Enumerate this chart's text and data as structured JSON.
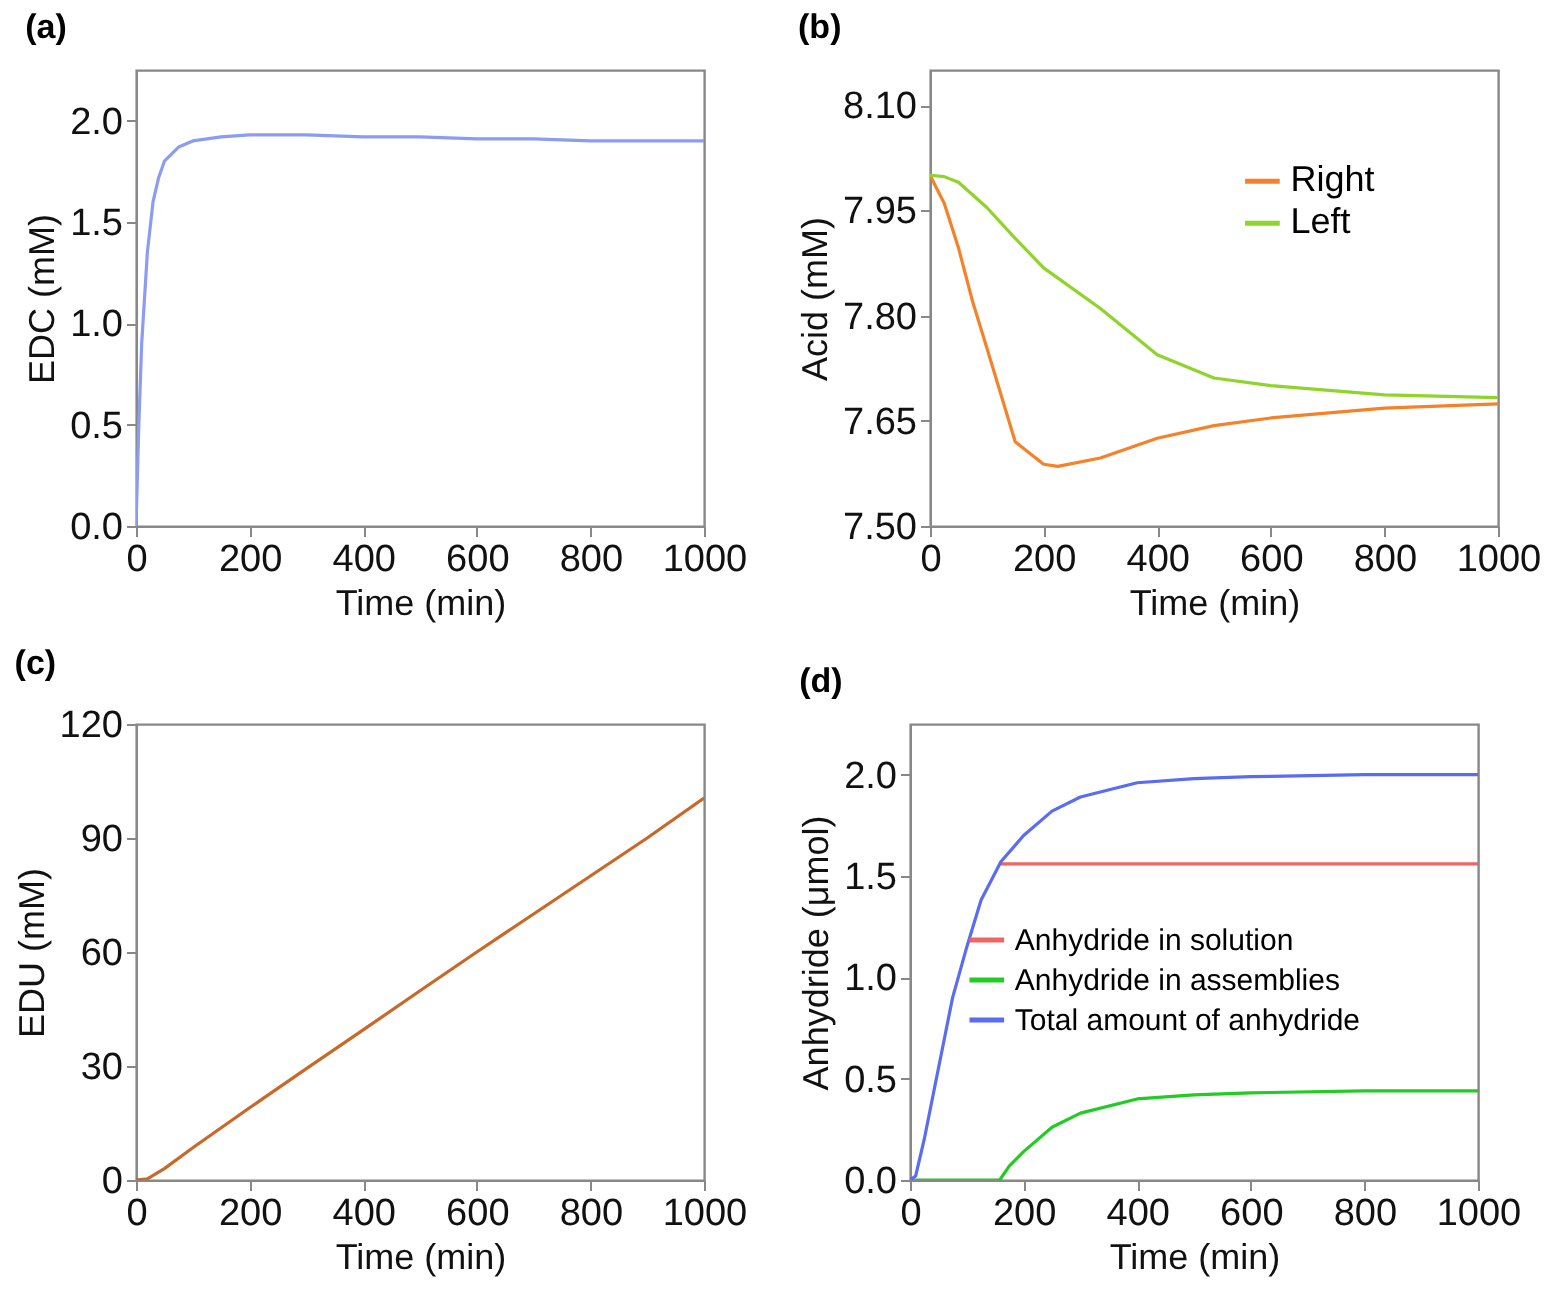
{
  "chart_data": [
    {
      "type": "line",
      "title": "(a)",
      "xlabel": "Time (min)",
      "ylabel": "EDC (mM)",
      "xlim": [
        0,
        1000
      ],
      "xticks": [
        0,
        200,
        400,
        600,
        800,
        1000
      ],
      "ylim": [
        0,
        2.25
      ],
      "yticks": [
        {
          "value": 0,
          "label": "0.0"
        },
        {
          "value": 0.5,
          "label": "0.5"
        },
        {
          "value": 1,
          "label": "1.0"
        },
        {
          "value": 1.5,
          "label": "1.5"
        },
        {
          "value": 2,
          "label": "2.0"
        }
      ],
      "series": [
        {
          "color": "#8c9cf2",
          "x": [
            0,
            5,
            10,
            20,
            30,
            40,
            50,
            75,
            100,
            150,
            200,
            300,
            400,
            500,
            600,
            700,
            800,
            900,
            1000
          ],
          "values": [
            0,
            0.5,
            0.9,
            1.35,
            1.6,
            1.72,
            1.8,
            1.87,
            1.9,
            1.92,
            1.93,
            1.93,
            1.92,
            1.92,
            1.91,
            1.91,
            1.9,
            1.9,
            1.9
          ]
        }
      ]
    },
    {
      "type": "line",
      "title": "(b)",
      "xlabel": "Time (min)",
      "ylabel": "Acid (mM)",
      "xlim": [
        0,
        1000
      ],
      "xticks": [
        0,
        200,
        400,
        600,
        800,
        1000
      ],
      "ylim": [
        7.5,
        8.15
      ],
      "yticks": [
        {
          "value": 7.5,
          "label": "7.50"
        },
        {
          "value": 7.65,
          "label": "7.65"
        },
        {
          "value": 7.8,
          "label": "7.80"
        },
        {
          "value": 7.95,
          "label": "7.95"
        },
        {
          "value": 8.1,
          "label": "8.10"
        }
      ],
      "legend": "top right",
      "series": [
        {
          "name": "Right",
          "color": "#f5822a",
          "x": [
            0,
            25,
            50,
            75,
            100,
            150,
            200,
            225,
            300,
            400,
            500,
            600,
            800,
            1000
          ],
          "values": [
            8.0,
            7.96,
            7.897,
            7.82,
            7.754,
            7.62,
            7.588,
            7.585,
            7.597,
            7.625,
            7.643,
            7.654,
            7.668,
            7.674
          ]
        },
        {
          "name": "Left",
          "color": "#8fd42a",
          "x": [
            0,
            25,
            50,
            100,
            150,
            200,
            300,
            400,
            500,
            600,
            800,
            1000
          ],
          "values": [
            8.0,
            7.998,
            7.99,
            7.954,
            7.91,
            7.868,
            7.81,
            7.744,
            7.711,
            7.7,
            7.687,
            7.683
          ]
        }
      ]
    },
    {
      "type": "line",
      "title": "(c)",
      "xlabel": "Time (min)",
      "ylabel": "EDU (mM)",
      "xlim": [
        0,
        1000
      ],
      "xticks": [
        0,
        200,
        400,
        600,
        800,
        1000
      ],
      "ylim": [
        0,
        120
      ],
      "yticks": [
        0,
        30,
        60,
        90,
        120
      ],
      "series": [
        {
          "color": "#c8692a",
          "x": [
            0,
            20,
            50,
            100,
            200,
            300,
            400,
            500,
            600,
            700,
            800,
            900,
            1000
          ],
          "values": [
            0,
            0.3,
            3,
            8.5,
            19,
            29.3,
            39.5,
            49.8,
            60,
            70,
            80,
            90,
            100.5
          ]
        }
      ]
    },
    {
      "type": "line",
      "title": "(d)",
      "xlabel": "Time (min)",
      "ylabel": "Anhydride (μmol)",
      "xlim": [
        0,
        1000
      ],
      "xticks": [
        0,
        200,
        400,
        600,
        800,
        1000
      ],
      "ylim": [
        0,
        2.25
      ],
      "yticks": [
        {
          "value": 0,
          "label": "0.0"
        },
        {
          "value": 0.5,
          "label": "0.5"
        },
        {
          "value": 1,
          "label": "1.0"
        },
        {
          "value": 1.5,
          "label": "1.5"
        },
        {
          "value": 2,
          "label": "2.0"
        }
      ],
      "legend": "left",
      "series": [
        {
          "name": "Anhydride in solution",
          "color": "#f06464",
          "x": [
            160,
            1000
          ],
          "values": [
            1.56,
            1.56
          ]
        },
        {
          "name": "Anhydride in assemblies",
          "color": "#22cc22",
          "x": [
            0,
            158,
            175,
            200,
            250,
            300,
            400,
            500,
            600,
            800,
            1000
          ],
          "values": [
            0,
            0,
            0.07,
            0.14,
            0.26,
            0.33,
            0.4,
            0.42,
            0.43,
            0.44,
            0.44
          ]
        },
        {
          "name": "Total amount of anhydride",
          "color": "#5a6cf0",
          "x": [
            0,
            10,
            25,
            50,
            75,
            100,
            125,
            160,
            200,
            250,
            300,
            400,
            500,
            600,
            800,
            1000
          ],
          "values": [
            0,
            0.02,
            0.2,
            0.55,
            0.9,
            1.15,
            1.38,
            1.57,
            1.7,
            1.82,
            1.89,
            1.96,
            1.98,
            1.99,
            2.0,
            2.0
          ]
        }
      ]
    }
  ]
}
